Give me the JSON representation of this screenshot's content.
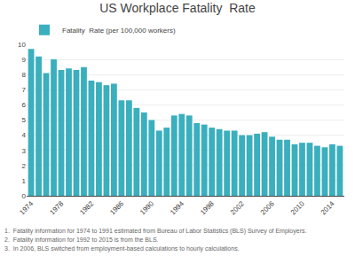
{
  "chart_data": {
    "type": "bar",
    "title": "US Workplace Fatality  Rate",
    "x": [
      1974,
      1975,
      1976,
      1977,
      1978,
      1979,
      1980,
      1981,
      1982,
      1983,
      1984,
      1985,
      1986,
      1987,
      1988,
      1989,
      1990,
      1991,
      1992,
      1993,
      1994,
      1995,
      1996,
      1997,
      1998,
      1999,
      2000,
      2001,
      2002,
      2003,
      2004,
      2005,
      2006,
      2007,
      2008,
      2009,
      2010,
      2011,
      2012,
      2013,
      2014,
      2015
    ],
    "series": [
      {
        "name": "Fatality  Rate (per 100,000 workers)",
        "color": "#3aafbe",
        "values": [
          9.7,
          9.2,
          8.1,
          9.0,
          8.3,
          8.4,
          8.3,
          8.5,
          7.6,
          7.5,
          7.3,
          7.4,
          6.3,
          6.3,
          5.8,
          5.5,
          5.0,
          4.3,
          4.5,
          5.3,
          5.4,
          5.3,
          4.8,
          4.7,
          4.5,
          4.4,
          4.3,
          4.3,
          4.0,
          4.0,
          4.1,
          4.2,
          3.9,
          3.7,
          3.7,
          3.4,
          3.5,
          3.5,
          3.3,
          3.2,
          3.4,
          3.3
        ]
      }
    ],
    "xlim": [
      1973.4,
      2015.6
    ],
    "xticks": [
      1974,
      1978,
      1982,
      1986,
      1990,
      1994,
      1998,
      2002,
      2006,
      2010,
      2014
    ],
    "ylim": [
      0,
      10
    ],
    "yticks": [
      0,
      1,
      2,
      3,
      4,
      5,
      6,
      7,
      8,
      9,
      10
    ],
    "grid": true,
    "legend": "upper left",
    "annotations": [
      "1.  Fatality information for 1974 to 1991 estimated from Bureau of Labor Statistics (BLS) Survey of Employers.",
      "2.  Fatality information for 1992 to 2015 is from the BLS.",
      "3.  In 2006, BLS switched from employment-based calculations to hourly calculations."
    ]
  }
}
